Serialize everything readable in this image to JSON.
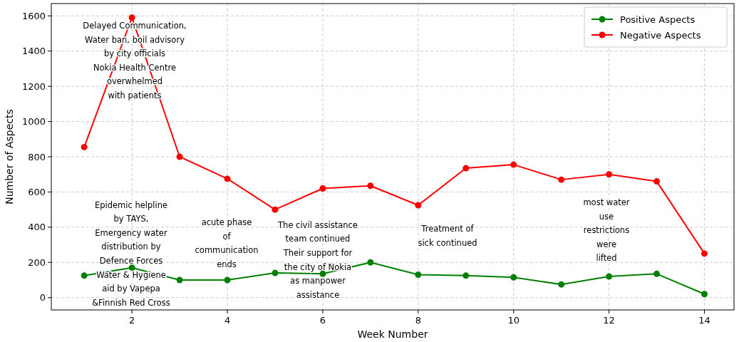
{
  "chart_data": {
    "type": "line",
    "xlabel": "Week Number",
    "ylabel": "Number of Aspects",
    "x": [
      1,
      2,
      3,
      4,
      5,
      6,
      7,
      8,
      9,
      10,
      11,
      12,
      13,
      14
    ],
    "series": [
      {
        "name": "Positive Aspects",
        "color": "#008000",
        "values": [
          125,
          170,
          100,
          100,
          140,
          135,
          200,
          130,
          125,
          115,
          75,
          120,
          135,
          20
        ]
      },
      {
        "name": "Negative Aspects",
        "color": "#ff0000",
        "values": [
          855,
          1590,
          800,
          675,
          500,
          620,
          635,
          525,
          735,
          755,
          670,
          700,
          660,
          250
        ]
      }
    ],
    "xlim": [
      0.31,
      14.62
    ],
    "ylim": [
      -70,
      1670
    ],
    "xticks": [
      2,
      4,
      6,
      8,
      10,
      12,
      14
    ],
    "yticks": [
      0,
      200,
      400,
      600,
      800,
      1000,
      1200,
      1400,
      1600
    ],
    "grid": true,
    "legend": "top right",
    "marker": "circle",
    "line_style": "solid",
    "annotations": [
      "Delayed Communication,\nWater ban, boil advisory\nby city officials\nNokia Health Centre\noverwhelmed\nwith patients",
      "Epidemic helpline\nby TAYS,\nEmergency water\ndistribution by\nDefence Forces\nWater & Hygiene\naid by Vapepa\n&Finnish Red Cross",
      "acute phase\nof\ncommunication\nends",
      "The civil assistance\nteam continued\nTheir support for\nthe city of Nokia\nas manpower\nassistance",
      "Treatment of\nsick continued",
      "most water\nuse\nrestrictions\nwere\nlifted"
    ]
  }
}
